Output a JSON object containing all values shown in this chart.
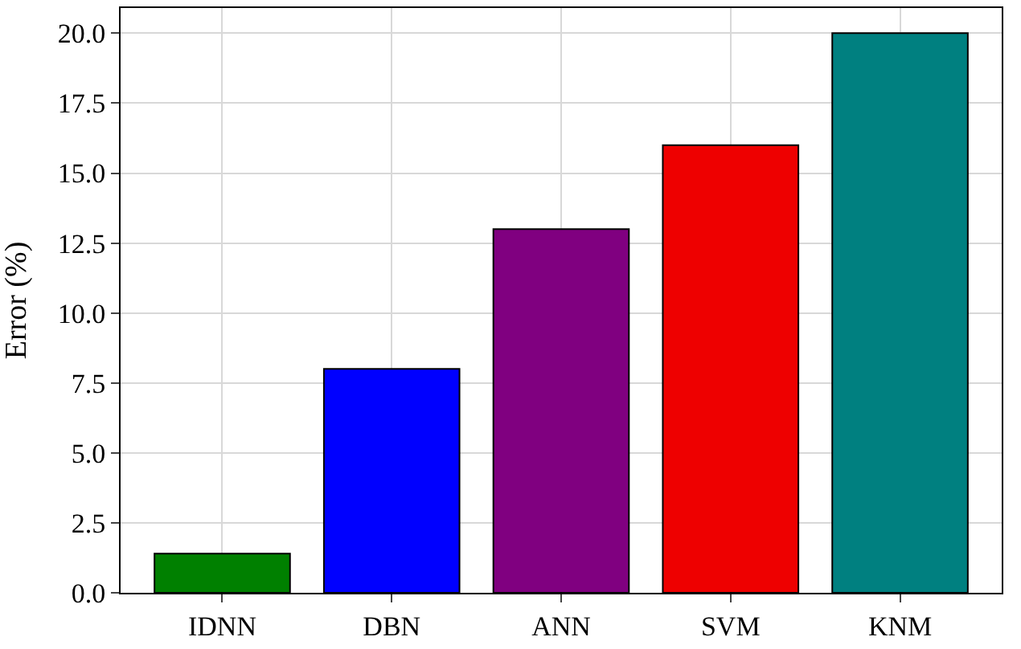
{
  "chart_data": {
    "type": "bar",
    "ylabel": "Error (%)",
    "categories": [
      "IDNN",
      "DBN",
      "ANN",
      "SVM",
      "KNM"
    ],
    "values": [
      1.4,
      8.0,
      13.0,
      16.0,
      20.0
    ],
    "colors": [
      "#008000",
      "#0000ff",
      "#800080",
      "#ee0000",
      "#008080"
    ],
    "ylim": [
      0,
      20.9
    ],
    "yticks": [
      {
        "value": 0,
        "label": "0.0"
      },
      {
        "value": 2.5,
        "label": "2.5"
      },
      {
        "value": 5,
        "label": "5.0"
      },
      {
        "value": 7.5,
        "label": "7.5"
      },
      {
        "value": 10,
        "label": "10.0"
      },
      {
        "value": 12.5,
        "label": "12.5"
      },
      {
        "value": 15,
        "label": "15.0"
      },
      {
        "value": 17.5,
        "label": "17.5"
      },
      {
        "value": 20,
        "label": "20.0"
      }
    ],
    "grid": true
  }
}
